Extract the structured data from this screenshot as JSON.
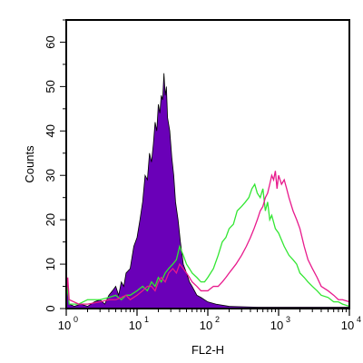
{
  "chart_data": {
    "type": "area",
    "xlabel": "FL2-H",
    "ylabel": "Counts",
    "xscale": "log",
    "xlim": [
      1,
      10000
    ],
    "ylim": [
      0,
      65
    ],
    "x_ticks": [
      {
        "value": 1,
        "base": "10",
        "exp": "0"
      },
      {
        "value": 10,
        "base": "10",
        "exp": "1"
      },
      {
        "value": 100,
        "base": "10",
        "exp": "2"
      },
      {
        "value": 1000,
        "base": "10",
        "exp": "3"
      },
      {
        "value": 10000,
        "base": "10",
        "exp": "4"
      }
    ],
    "y_ticks": [
      "0",
      "10",
      "20",
      "30",
      "40",
      "50",
      "60"
    ],
    "grid": false,
    "series": [
      {
        "style": "filled",
        "color": "#6a00b8",
        "points": [
          [
            1,
            3
          ],
          [
            1.05,
            6
          ],
          [
            1.1,
            1
          ],
          [
            1.3,
            0.5
          ],
          [
            1.6,
            1
          ],
          [
            2,
            0.5
          ],
          [
            2.5,
            1.5
          ],
          [
            3,
            2
          ],
          [
            3.5,
            1
          ],
          [
            4,
            3
          ],
          [
            4.5,
            4
          ],
          [
            5,
            5
          ],
          [
            5.5,
            3
          ],
          [
            6,
            6
          ],
          [
            6.5,
            5
          ],
          [
            7,
            8
          ],
          [
            8,
            9
          ],
          [
            9,
            14
          ],
          [
            10,
            16
          ],
          [
            11,
            20
          ],
          [
            12,
            24
          ],
          [
            13,
            30
          ],
          [
            14,
            29
          ],
          [
            15,
            35
          ],
          [
            16,
            33
          ],
          [
            17,
            37
          ],
          [
            18,
            42
          ],
          [
            19,
            40
          ],
          [
            20,
            46
          ],
          [
            21,
            44
          ],
          [
            22,
            48
          ],
          [
            23,
            47
          ],
          [
            24,
            53
          ],
          [
            25,
            48
          ],
          [
            26,
            50
          ],
          [
            27,
            43
          ],
          [
            29,
            40
          ],
          [
            31,
            34
          ],
          [
            33,
            30
          ],
          [
            35,
            24
          ],
          [
            38,
            20
          ],
          [
            41,
            15
          ],
          [
            45,
            10
          ],
          [
            50,
            8
          ],
          [
            55,
            6
          ],
          [
            60,
            5
          ],
          [
            70,
            3
          ],
          [
            80,
            2.5
          ],
          [
            100,
            1.5
          ],
          [
            130,
            1
          ],
          [
            200,
            0.5
          ],
          [
            500,
            0.3
          ],
          [
            10000,
            0.3
          ]
        ]
      },
      {
        "style": "line",
        "color": "#32e632",
        "points": [
          [
            1,
            2
          ],
          [
            1.05,
            5
          ],
          [
            1.1,
            1
          ],
          [
            1.5,
            1
          ],
          [
            2,
            2
          ],
          [
            3,
            2
          ],
          [
            4,
            2.5
          ],
          [
            5,
            3
          ],
          [
            6,
            2
          ],
          [
            7,
            3
          ],
          [
            8,
            3
          ],
          [
            10,
            4
          ],
          [
            12,
            5
          ],
          [
            14,
            4
          ],
          [
            16,
            6
          ],
          [
            18,
            5
          ],
          [
            20,
            7
          ],
          [
            22,
            6
          ],
          [
            25,
            8
          ],
          [
            28,
            9
          ],
          [
            32,
            10
          ],
          [
            36,
            11
          ],
          [
            40,
            14
          ],
          [
            45,
            12
          ],
          [
            50,
            10
          ],
          [
            55,
            9
          ],
          [
            60,
            8
          ],
          [
            70,
            7
          ],
          [
            80,
            6
          ],
          [
            90,
            6
          ],
          [
            100,
            7
          ],
          [
            120,
            9
          ],
          [
            140,
            12
          ],
          [
            160,
            15
          ],
          [
            180,
            16
          ],
          [
            200,
            18
          ],
          [
            230,
            19
          ],
          [
            260,
            22
          ],
          [
            300,
            23
          ],
          [
            340,
            24
          ],
          [
            380,
            25
          ],
          [
            420,
            27
          ],
          [
            460,
            28
          ],
          [
            500,
            26
          ],
          [
            550,
            25
          ],
          [
            600,
            27
          ],
          [
            650,
            22
          ],
          [
            700,
            24
          ],
          [
            750,
            20
          ],
          [
            800,
            21
          ],
          [
            900,
            18
          ],
          [
            1000,
            17
          ],
          [
            1200,
            14
          ],
          [
            1400,
            12
          ],
          [
            1600,
            11
          ],
          [
            1800,
            10
          ],
          [
            2000,
            8
          ],
          [
            2300,
            7
          ],
          [
            2600,
            6
          ],
          [
            3000,
            5
          ],
          [
            3500,
            4
          ],
          [
            4000,
            3
          ],
          [
            5000,
            2.5
          ],
          [
            6000,
            1.5
          ],
          [
            7000,
            1.5
          ],
          [
            8000,
            1
          ],
          [
            10000,
            0.5
          ]
        ]
      },
      {
        "style": "line",
        "color": "#e8198c",
        "points": [
          [
            1,
            3
          ],
          [
            1.05,
            7
          ],
          [
            1.1,
            2
          ],
          [
            1.5,
            1
          ],
          [
            2,
            1
          ],
          [
            3,
            1.5
          ],
          [
            4,
            2
          ],
          [
            5,
            2
          ],
          [
            6,
            2.5
          ],
          [
            7,
            3
          ],
          [
            8,
            2
          ],
          [
            10,
            3
          ],
          [
            12,
            4
          ],
          [
            14,
            5
          ],
          [
            16,
            5
          ],
          [
            18,
            4
          ],
          [
            20,
            6
          ],
          [
            22,
            7
          ],
          [
            25,
            6
          ],
          [
            28,
            8
          ],
          [
            32,
            9
          ],
          [
            36,
            8
          ],
          [
            40,
            10
          ],
          [
            45,
            9
          ],
          [
            50,
            8
          ],
          [
            55,
            7
          ],
          [
            60,
            6
          ],
          [
            70,
            5
          ],
          [
            80,
            4
          ],
          [
            90,
            4
          ],
          [
            100,
            4
          ],
          [
            120,
            5
          ],
          [
            140,
            5
          ],
          [
            160,
            6
          ],
          [
            180,
            7
          ],
          [
            200,
            8
          ],
          [
            250,
            10
          ],
          [
            300,
            12
          ],
          [
            350,
            14
          ],
          [
            400,
            16
          ],
          [
            450,
            18
          ],
          [
            500,
            20
          ],
          [
            550,
            22
          ],
          [
            600,
            23
          ],
          [
            650,
            25
          ],
          [
            700,
            26
          ],
          [
            750,
            28
          ],
          [
            800,
            30
          ],
          [
            850,
            29
          ],
          [
            900,
            31
          ],
          [
            950,
            27
          ],
          [
            1000,
            30
          ],
          [
            1100,
            28
          ],
          [
            1200,
            29
          ],
          [
            1300,
            27
          ],
          [
            1400,
            25
          ],
          [
            1600,
            22
          ],
          [
            1800,
            20
          ],
          [
            2000,
            18
          ],
          [
            2300,
            14
          ],
          [
            2600,
            11
          ],
          [
            3000,
            9
          ],
          [
            3500,
            7
          ],
          [
            4000,
            5
          ],
          [
            5000,
            4
          ],
          [
            6000,
            3
          ],
          [
            7000,
            2
          ],
          [
            8000,
            2
          ],
          [
            10000,
            1.5
          ]
        ]
      }
    ]
  }
}
